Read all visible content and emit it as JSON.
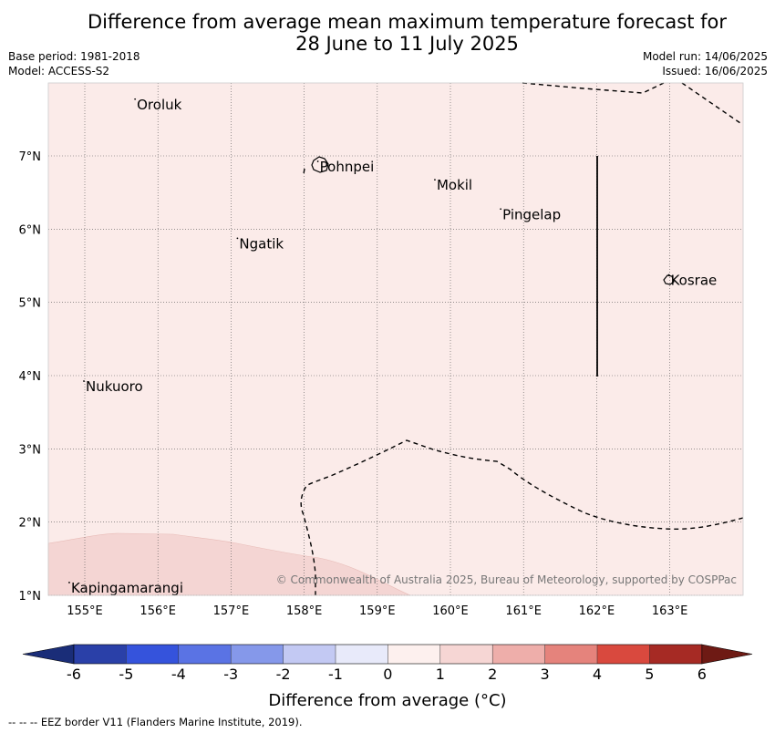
{
  "title": {
    "line1": "Difference from average mean maximum temperature forecast for",
    "line2": "28 June to 11 July 2025"
  },
  "meta_left": {
    "base_period": "Base period: 1981-2018",
    "model": "Model: ACCESS-S2"
  },
  "meta_right": {
    "model_run": "Model run: 14/06/2025",
    "issued": "Issued: 16/06/2025"
  },
  "map": {
    "background_color": "#fbebe9",
    "warm_anomaly_color": "#f4d5d3",
    "lon_ticks": [
      "155°E",
      "156°E",
      "157°E",
      "158°E",
      "159°E",
      "160°E",
      "161°E",
      "162°E",
      "163°E"
    ],
    "lat_ticks": [
      "7°N",
      "6°N",
      "5°N",
      "4°N",
      "3°N",
      "2°N",
      "1°N"
    ],
    "places": [
      {
        "name": "Oroluk",
        "lon": 155.7,
        "lat": 7.7
      },
      {
        "name": "Pohnpei",
        "lon": 158.2,
        "lat": 6.85
      },
      {
        "name": "Mokil",
        "lon": 159.8,
        "lat": 6.6
      },
      {
        "name": "Pingelap",
        "lon": 160.7,
        "lat": 6.2
      },
      {
        "name": "Ngatik",
        "lon": 157.1,
        "lat": 5.8
      },
      {
        "name": "Kosrae",
        "lon": 163.0,
        "lat": 5.3
      },
      {
        "name": "Nukuoro",
        "lon": 155.0,
        "lat": 3.85
      },
      {
        "name": "Kapingamarangi",
        "lon": 154.8,
        "lat": 1.1
      }
    ],
    "copyright": "© Commonwealth of Australia 2025, Bureau of Meteorology, supported by COSPPac"
  },
  "colorbar": {
    "label": "Difference from average (°C)",
    "ticks": [
      "-6",
      "-5",
      "-4",
      "-3",
      "-2",
      "-1",
      "0",
      "1",
      "2",
      "3",
      "4",
      "5",
      "6"
    ],
    "colors": [
      "#2a40a8",
      "#3553dc",
      "#5a73e4",
      "#8598ea",
      "#c3c9f3",
      "#e8eafa",
      "#fdf0ee",
      "#f6d6d4",
      "#eeaeaa",
      "#e5837c",
      "#d9493e",
      "#a62a24"
    ],
    "under_color": "#1a2d78",
    "over_color": "#6e1a14"
  },
  "footer": "-- -- -- EEZ border V11 (Flanders Marine Institute, 2019)."
}
